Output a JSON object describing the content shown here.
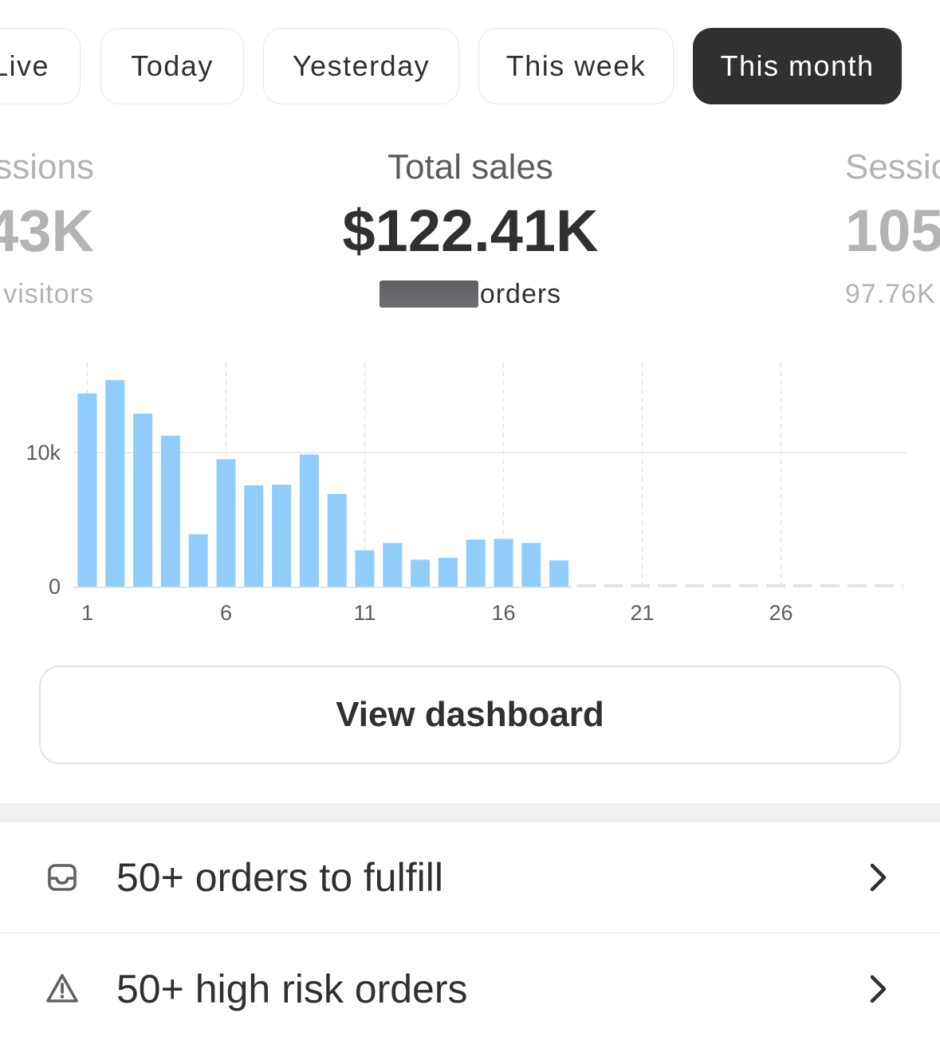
{
  "tabs": [
    {
      "label": "Live",
      "active": false
    },
    {
      "label": "Today",
      "active": false
    },
    {
      "label": "Yesterday",
      "active": false
    },
    {
      "label": "This week",
      "active": false
    },
    {
      "label": "This month",
      "active": true
    }
  ],
  "metrics": {
    "left": {
      "label": "ssions",
      "value": "43K",
      "sub": "visitors"
    },
    "center": {
      "label": "Total sales",
      "value": "$122.41K",
      "sub": "orders"
    },
    "right": {
      "label": "Sessic",
      "value": "105",
      "sub": "97.76K"
    }
  },
  "chart_data": {
    "type": "bar",
    "x": [
      1,
      2,
      3,
      4,
      5,
      6,
      7,
      8,
      9,
      10,
      11,
      12,
      13,
      14,
      15,
      16,
      17,
      18,
      19,
      20,
      21,
      22,
      23,
      24,
      25,
      26,
      27,
      28,
      29,
      30
    ],
    "values": [
      14400,
      15400,
      12900,
      11250,
      3900,
      9500,
      7550,
      7600,
      9850,
      6900,
      2700,
      3250,
      2000,
      2150,
      3500,
      3550,
      3250,
      1950,
      null,
      null,
      null,
      null,
      null,
      null,
      null,
      null,
      null,
      null,
      null,
      null
    ],
    "x_tick_labels": [
      "1",
      "6",
      "11",
      "16",
      "21",
      "26"
    ],
    "y_tick_labels": [
      "0",
      "10k"
    ],
    "ylim": [
      0,
      17000
    ],
    "bar_color": "#91cdfb",
    "grid": true
  },
  "actions": {
    "view_dashboard": "View dashboard"
  },
  "tasks": [
    {
      "icon": "inbox-icon",
      "label": "50+ orders to fulfill"
    },
    {
      "icon": "warning-icon",
      "label": "50+ high risk orders"
    }
  ],
  "colors": {
    "active_tab": "#303030",
    "bar": "#91cdfb",
    "muted_text": "#b3b3b3"
  }
}
